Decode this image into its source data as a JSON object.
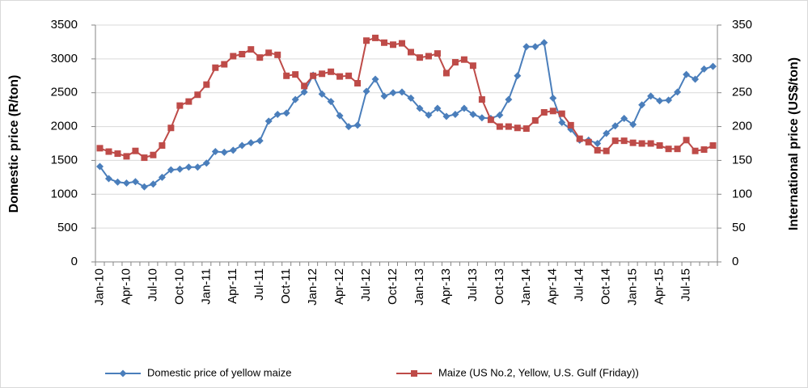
{
  "chart_data": {
    "type": "line",
    "y_label": "Domestic price (R/ton)",
    "y2_label": "International price (US$/ton)",
    "categories": [
      "Jan-10",
      null,
      null,
      "Apr-10",
      null,
      null,
      "Jul-10",
      null,
      null,
      "Oct-10",
      null,
      null,
      "Jan-11",
      null,
      null,
      "Apr-11",
      null,
      null,
      "Jul-11",
      null,
      null,
      "Oct-11",
      null,
      null,
      "Jan-12",
      null,
      null,
      "Apr-12",
      null,
      null,
      "Jul-12",
      null,
      null,
      "Oct-12",
      null,
      null,
      "Jan-13",
      null,
      null,
      "Apr-13",
      null,
      null,
      "Jul-13",
      null,
      null,
      "Oct-13",
      null,
      null,
      "Jan-14",
      null,
      null,
      "Apr-14",
      null,
      null,
      "Jul-14",
      null,
      null,
      "Oct-14",
      null,
      null,
      "Jan-15",
      null,
      null,
      "Apr-15",
      null,
      null,
      "Jul-15",
      null,
      null,
      null
    ],
    "series": [
      {
        "name": "Domestic price of yellow maize",
        "color": "#4a7ebb",
        "marker": "diamond",
        "values": [
          1410,
          1230,
          1180,
          1165,
          1185,
          1110,
          1150,
          1250,
          1360,
          1370,
          1400,
          1400,
          1460,
          1630,
          1620,
          1650,
          1720,
          1760,
          1790,
          2080,
          2180,
          2200,
          2400,
          2510,
          2760,
          2480,
          2370,
          2160,
          2000,
          2020,
          2520,
          2700,
          2450,
          2500,
          2510,
          2420,
          2270,
          2170,
          2270,
          2150,
          2180,
          2270,
          2180,
          2130,
          2120,
          2170,
          2400,
          2750,
          3180,
          3180,
          3240,
          2420,
          2060,
          1960,
          1800,
          1800,
          1750,
          1900,
          2010,
          2120,
          2030,
          2320,
          2450,
          2380,
          2390,
          2510,
          2770,
          2700,
          2850,
          2890
        ]
      },
      {
        "name": "Maize (US No.2, Yellow, U.S. Gulf (Friday))",
        "color": "#be4b48",
        "marker": "square",
        "axis": "y2",
        "values": [
          168,
          163,
          160,
          156,
          164,
          154,
          158,
          172,
          198,
          231,
          237,
          247,
          262,
          287,
          292,
          304,
          307,
          314,
          302,
          309,
          306,
          275,
          277,
          260,
          275,
          278,
          281,
          274,
          275,
          264,
          327,
          331,
          324,
          321,
          323,
          310,
          302,
          304,
          308,
          279,
          295,
          299,
          290,
          240,
          210,
          200,
          200,
          198,
          197,
          209,
          221,
          223,
          219,
          202,
          182,
          177,
          165,
          164,
          179,
          179,
          176,
          175,
          175,
          172,
          167,
          167,
          180,
          164,
          166,
          172
        ]
      }
    ],
    "ylim": [
      0,
      3500
    ],
    "yticks": [
      0,
      500,
      1000,
      1500,
      2000,
      2500,
      3000,
      3500
    ],
    "y2lim": [
      0,
      350
    ],
    "y2ticks": [
      0,
      50,
      100,
      150,
      200,
      250,
      300,
      350
    ],
    "grid": true,
    "legend": "bottom"
  }
}
